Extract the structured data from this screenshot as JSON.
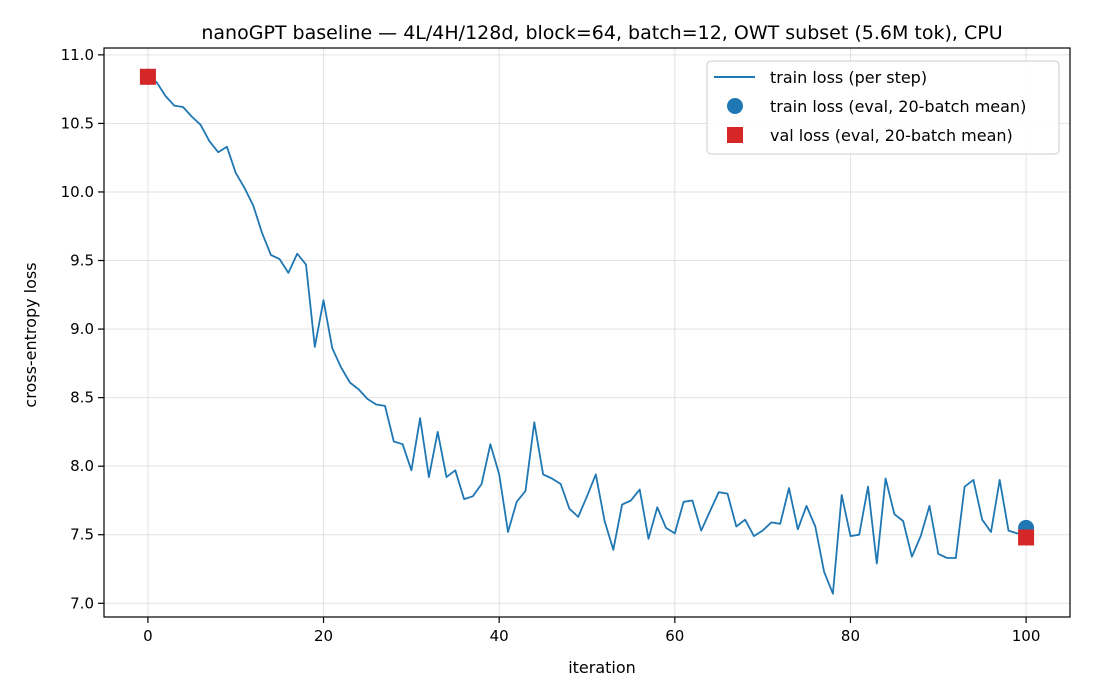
{
  "chart_data": {
    "type": "line",
    "title": "nanoGPT baseline — 4L/4H/128d, block=64, batch=12, OWT subset (5.6M tok), CPU",
    "xlabel": "iteration",
    "ylabel": "cross-entropy loss",
    "xlim": [
      -5,
      105
    ],
    "ylim": [
      6.9,
      11.05
    ],
    "xticks": [
      0,
      20,
      40,
      60,
      80,
      100
    ],
    "yticks": [
      7.0,
      7.5,
      8.0,
      8.5,
      9.0,
      9.5,
      10.0,
      10.5,
      11.0
    ],
    "grid": true,
    "legend_position": "top-right",
    "colors": {
      "train": "#1f77b4",
      "val": "#d62728"
    },
    "series": [
      {
        "name": "train loss (per step)",
        "kind": "line",
        "x": [
          0,
          1,
          2,
          3,
          4,
          5,
          6,
          7,
          8,
          9,
          10,
          11,
          12,
          13,
          14,
          15,
          16,
          17,
          18,
          19,
          20,
          21,
          22,
          23,
          24,
          25,
          26,
          27,
          28,
          29,
          30,
          31,
          32,
          33,
          34,
          35,
          36,
          37,
          38,
          39,
          40,
          41,
          42,
          43,
          44,
          45,
          46,
          47,
          48,
          49,
          50,
          51,
          52,
          53,
          54,
          55,
          56,
          57,
          58,
          59,
          60,
          61,
          62,
          63,
          64,
          65,
          66,
          67,
          68,
          69,
          70,
          71,
          72,
          73,
          74,
          75,
          76,
          77,
          78,
          79,
          80,
          81,
          82,
          83,
          84,
          85,
          86,
          87,
          88,
          89,
          90,
          91,
          92,
          93,
          94,
          95,
          96,
          97,
          98,
          99,
          100
        ],
        "y": [
          10.84,
          10.8,
          10.7,
          10.63,
          10.62,
          10.55,
          10.49,
          10.37,
          10.29,
          10.33,
          10.14,
          10.03,
          9.9,
          9.7,
          9.54,
          9.51,
          9.41,
          9.55,
          9.47,
          8.87,
          9.21,
          8.86,
          8.72,
          8.61,
          8.56,
          8.49,
          8.45,
          8.44,
          8.18,
          8.16,
          7.97,
          8.35,
          7.92,
          8.25,
          7.92,
          7.97,
          7.76,
          7.78,
          7.87,
          8.16,
          7.94,
          7.52,
          7.74,
          7.82,
          8.32,
          7.94,
          7.91,
          7.87,
          7.69,
          7.63,
          7.78,
          7.94,
          7.6,
          7.39,
          7.72,
          7.75,
          7.83,
          7.47,
          7.7,
          7.55,
          7.51,
          7.74,
          7.75,
          7.53,
          7.67,
          7.81,
          7.8,
          7.56,
          7.61,
          7.49,
          7.53,
          7.59,
          7.58,
          7.84,
          7.54,
          7.71,
          7.56,
          7.23,
          7.07,
          7.79,
          7.49,
          7.5,
          7.85,
          7.29,
          7.91,
          7.65,
          7.6,
          7.34,
          7.49,
          7.71,
          7.36,
          7.33,
          7.33,
          7.85,
          7.9,
          7.61,
          7.52,
          7.9,
          7.53,
          7.51,
          7.5
        ]
      },
      {
        "name": "train loss (eval, 20-batch mean)",
        "kind": "marker-circle",
        "x": [
          0,
          100
        ],
        "y": [
          10.84,
          7.55
        ]
      },
      {
        "name": "val loss (eval, 20-batch mean)",
        "kind": "marker-square",
        "x": [
          0,
          100
        ],
        "y": [
          10.84,
          7.48
        ]
      }
    ]
  }
}
